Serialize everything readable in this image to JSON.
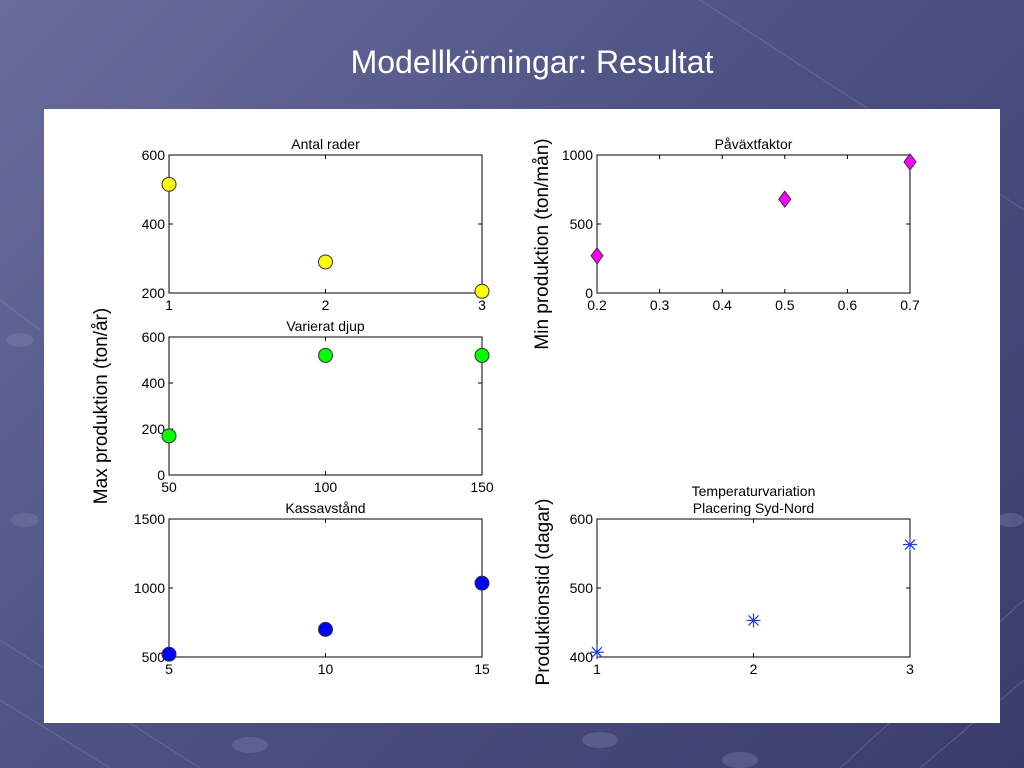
{
  "slide": {
    "title": "Modellkörningar: Resultat"
  },
  "labels": {
    "max_ylabel": "Max produktion (ton/år)",
    "min_ylabel": "Min produktion (ton/mån)",
    "prod_ylabel": "Produktionstid (dagar)"
  },
  "colors": {
    "yellow": "#ffff00",
    "green": "#00ff00",
    "blue": "#0000ff",
    "magenta": "#ff00ff",
    "star": "#1f3fd8"
  },
  "chart_data": [
    {
      "id": "antal-rader",
      "type": "scatter",
      "title": [
        "Antal rader"
      ],
      "marker": "circle",
      "color": "#ffff00",
      "x": [
        1,
        2,
        3
      ],
      "y": [
        515,
        290,
        205
      ],
      "xlim": [
        1,
        3
      ],
      "ylim": [
        200,
        600
      ],
      "xticks": [
        1,
        2,
        3
      ],
      "yticks": [
        200,
        400,
        600
      ],
      "xticklabels": [
        "1",
        "2",
        "3"
      ],
      "yticklabels": [
        "200",
        "400",
        "600"
      ],
      "grid": false
    },
    {
      "id": "varierat-djup",
      "type": "scatter",
      "title": [
        "Varierat djup"
      ],
      "marker": "circle",
      "color": "#00ff00",
      "x": [
        50,
        100,
        150
      ],
      "y": [
        170,
        520,
        520
      ],
      "xlim": [
        50,
        150
      ],
      "ylim": [
        0,
        600
      ],
      "xticks": [
        50,
        100,
        150
      ],
      "yticks": [
        0,
        200,
        400,
        600
      ],
      "xticklabels": [
        "50",
        "100",
        "150"
      ],
      "yticklabels": [
        "0",
        "200",
        "400",
        "600"
      ],
      "grid": false
    },
    {
      "id": "kassavstand",
      "type": "scatter",
      "title": [
        "Kassavstånd"
      ],
      "marker": "circle",
      "color": "#0000ff",
      "x": [
        5,
        10,
        15
      ],
      "y": [
        520,
        700,
        1035
      ],
      "xlim": [
        5,
        15
      ],
      "ylim": [
        500,
        1500
      ],
      "xticks": [
        5,
        10,
        15
      ],
      "yticks": [
        500,
        1000,
        1500
      ],
      "xticklabels": [
        "5",
        "10",
        "15"
      ],
      "yticklabels": [
        "500",
        "1000",
        "1500"
      ],
      "grid": false
    },
    {
      "id": "pavaxtfaktor",
      "type": "scatter",
      "title": [
        "Påväxtfaktor"
      ],
      "marker": "diamond",
      "color": "#ff00ff",
      "x": [
        0.2,
        0.5,
        0.7
      ],
      "y": [
        270,
        680,
        950
      ],
      "xlim": [
        0.2,
        0.7
      ],
      "ylim": [
        0,
        1000
      ],
      "xticks": [
        0.2,
        0.3,
        0.4,
        0.5,
        0.6,
        0.7
      ],
      "yticks": [
        0,
        500,
        1000
      ],
      "xticklabels": [
        "0.2",
        "0.3",
        "0.4",
        "0.5",
        "0.6",
        "0.7"
      ],
      "yticklabels": [
        "0",
        "500",
        "1000"
      ],
      "grid": false
    },
    {
      "id": "temperaturvariation",
      "type": "scatter",
      "title": [
        "Temperaturvariation",
        "Placering Syd-Nord"
      ],
      "marker": "star",
      "color": "#1f3fd8",
      "x": [
        1,
        2,
        3
      ],
      "y": [
        407,
        453,
        563
      ],
      "xlim": [
        1,
        3
      ],
      "ylim": [
        400,
        600
      ],
      "xticks": [
        1,
        2,
        3
      ],
      "yticks": [
        400,
        500,
        600
      ],
      "xticklabels": [
        "1",
        "2",
        "3"
      ],
      "yticklabels": [
        "400",
        "500",
        "600"
      ],
      "grid": false
    }
  ]
}
